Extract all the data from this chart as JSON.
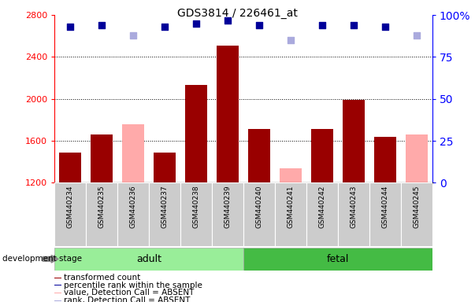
{
  "title": "GDS3814 / 226461_at",
  "samples": [
    "GSM440234",
    "GSM440235",
    "GSM440236",
    "GSM440237",
    "GSM440238",
    "GSM440239",
    "GSM440240",
    "GSM440241",
    "GSM440242",
    "GSM440243",
    "GSM440244",
    "GSM440245"
  ],
  "transformed_count": [
    1490,
    1660,
    null,
    1490,
    2130,
    2510,
    1710,
    null,
    1710,
    1990,
    1640,
    null
  ],
  "absent_value": [
    null,
    null,
    1760,
    null,
    null,
    null,
    null,
    1340,
    null,
    null,
    null,
    1660
  ],
  "percentile_rank": [
    93,
    94,
    null,
    93,
    95,
    97,
    94,
    null,
    94,
    94,
    93,
    null
  ],
  "absent_rank": [
    null,
    null,
    88,
    null,
    null,
    null,
    null,
    85,
    null,
    null,
    null,
    88
  ],
  "bar_color_present": "#990000",
  "bar_color_absent_value": "#ffaaaa",
  "dot_color_present": "#000099",
  "dot_color_absent_rank": "#aaaadd",
  "adult_bg": "#99ee99",
  "fetal_bg": "#44bb44",
  "sample_box_bg": "#cccccc",
  "group_label_adult": "adult",
  "group_label_fetal": "fetal",
  "ylim_left": [
    1200,
    2800
  ],
  "ylim_right": [
    0,
    100
  ],
  "yticks_left": [
    1200,
    1600,
    2000,
    2400,
    2800
  ],
  "yticks_right": [
    0,
    25,
    50,
    75,
    100
  ],
  "grid_lines": [
    1600,
    2000,
    2400
  ],
  "legend_items": [
    {
      "label": "transformed count",
      "color": "#990000"
    },
    {
      "label": "percentile rank within the sample",
      "color": "#000099"
    },
    {
      "label": "value, Detection Call = ABSENT",
      "color": "#ffaaaa"
    },
    {
      "label": "rank, Detection Call = ABSENT",
      "color": "#aaaadd"
    }
  ],
  "development_stage_label": "development stage",
  "background_color": "#ffffff"
}
